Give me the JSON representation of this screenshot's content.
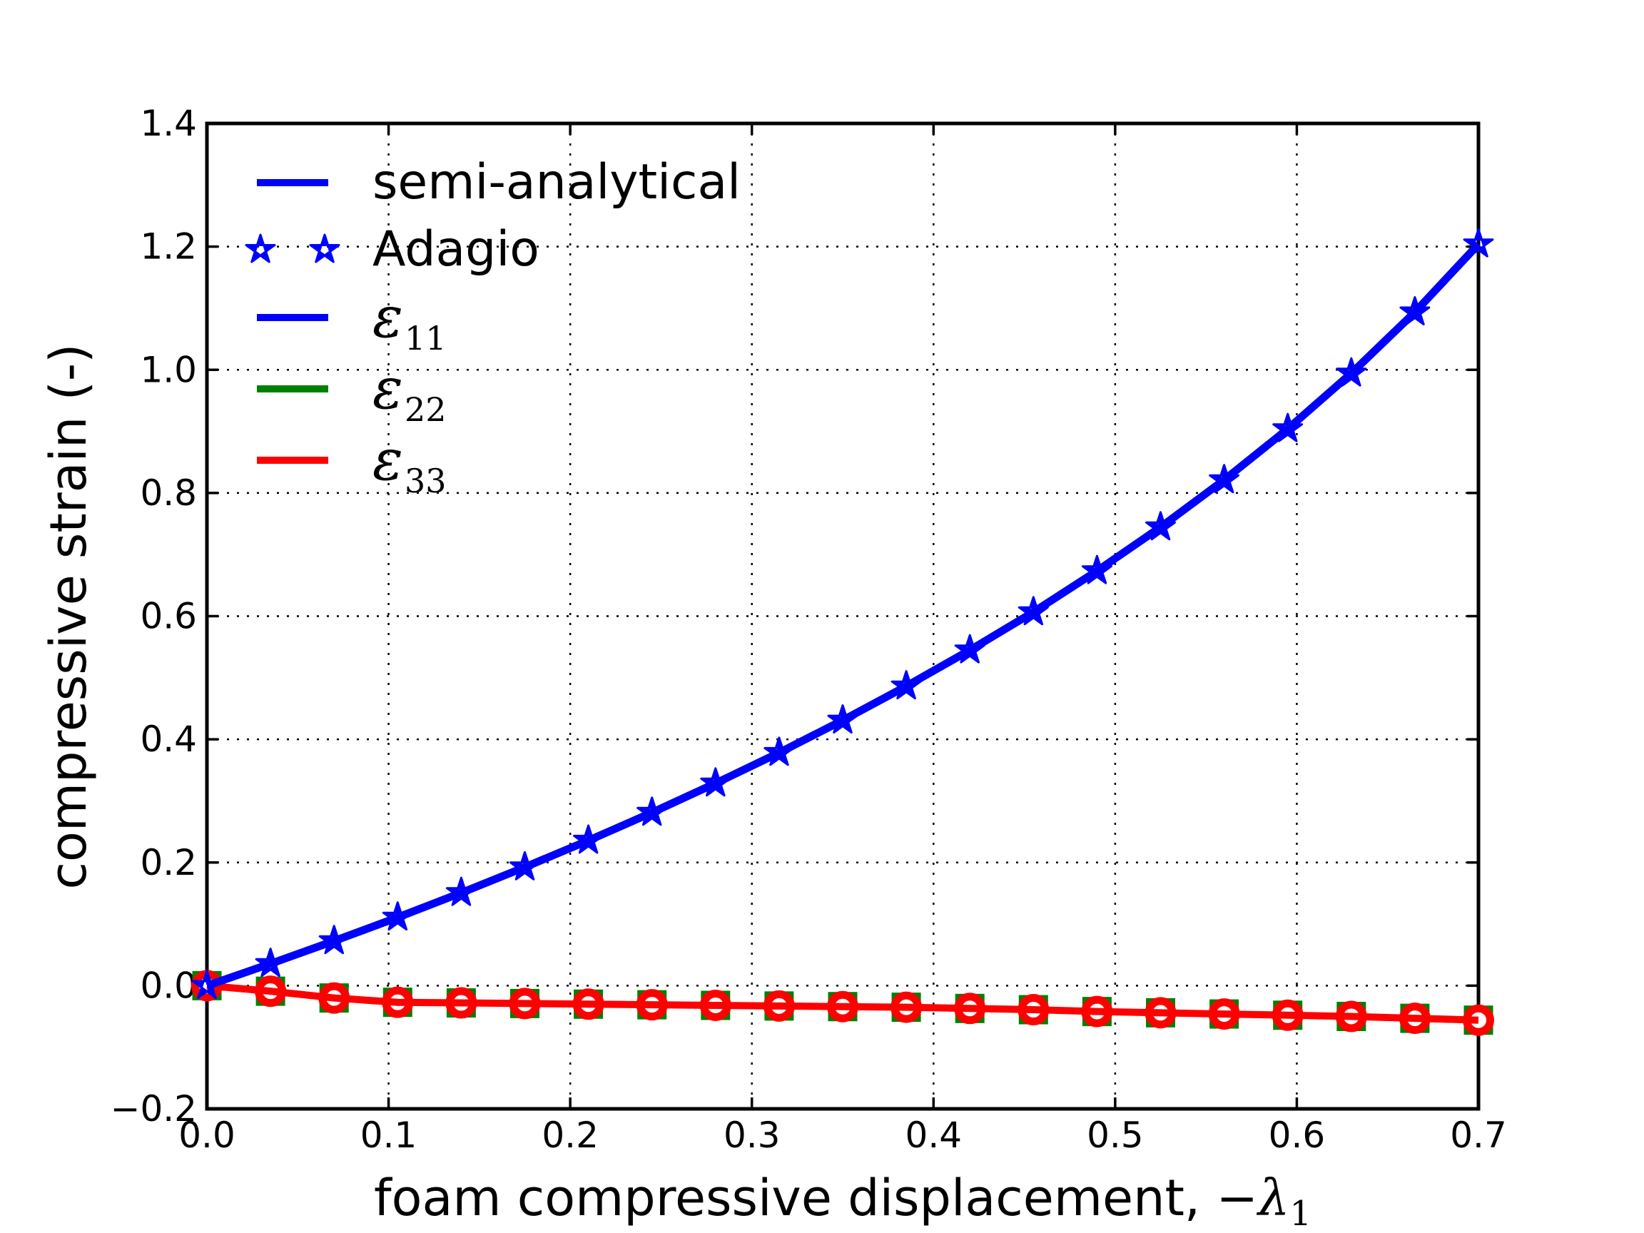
{
  "figure": {
    "background": "#ffffff"
  },
  "colors": {
    "blue": "#0000ff",
    "green": "#008000",
    "red": "#ff0000",
    "axis": "#000000",
    "marker_face": "#ffffff"
  },
  "axes": {
    "xlabel": {
      "prefix": "foam compressive displacement, ",
      "minus": "−",
      "symbol": "λ",
      "subscript": "1"
    },
    "ylabel": "compressive strain (-)",
    "x_ticks": {
      "values": [
        0.0,
        0.1,
        0.2,
        0.3,
        0.4,
        0.5,
        0.6,
        0.7
      ],
      "labels": [
        "0.0",
        "0.1",
        "0.2",
        "0.3",
        "0.4",
        "0.5",
        "0.6",
        "0.7"
      ]
    },
    "y_ticks": {
      "values": [
        1.4,
        1.2,
        1.0,
        0.8,
        0.6,
        0.4,
        0.2,
        0.0,
        -0.2
      ],
      "labels": [
        "1.4",
        "1.2",
        "1.0",
        "0.8",
        "0.6",
        "0.4",
        "0.2",
        "0.0",
        "−0.2"
      ]
    }
  },
  "legend": {
    "entries": [
      {
        "handle": "line",
        "color": "#0000ff",
        "label": "semi-analytical"
      },
      {
        "handle": "stars",
        "color": "#0000ff",
        "label": "Adagio"
      },
      {
        "handle": "line",
        "color": "#0000ff",
        "symbol": "ε",
        "sub": "11"
      },
      {
        "handle": "line",
        "color": "#008000",
        "symbol": "ε",
        "sub": "22"
      },
      {
        "handle": "line",
        "color": "#ff0000",
        "symbol": "ε",
        "sub": "33"
      }
    ]
  },
  "chart_data": {
    "type": "line",
    "title": "",
    "xlabel": "foam compressive displacement, −λ1",
    "ylabel": "compressive strain (-)",
    "xlim": [
      0.0,
      0.7
    ],
    "ylim": [
      -0.2,
      1.4
    ],
    "grid": "dotted",
    "legend_position": "upper left",
    "x": [
      0.0,
      0.035,
      0.07,
      0.105,
      0.14,
      0.175,
      0.21,
      0.245,
      0.28,
      0.315,
      0.35,
      0.385,
      0.42,
      0.455,
      0.49,
      0.525,
      0.56,
      0.595,
      0.63,
      0.665,
      0.7
    ],
    "series": [
      {
        "name": "semi-analytical eps11",
        "legend": "semi-analytical / ε_11",
        "color": "#0000ff",
        "style": "solid",
        "marker": "none",
        "values": [
          0.0,
          0.0356,
          0.0726,
          0.1109,
          0.1508,
          0.1924,
          0.2357,
          0.281,
          0.3285,
          0.3783,
          0.4308,
          0.4862,
          0.5447,
          0.6066,
          0.6733,
          0.7445,
          0.821,
          0.9039,
          0.9943,
          1.0936,
          1.204
        ]
      },
      {
        "name": "Adagio eps11",
        "legend": "Adagio",
        "color": "#0000ff",
        "style": "none",
        "marker": "star",
        "values": [
          0.0,
          0.0356,
          0.0726,
          0.1109,
          0.1508,
          0.1924,
          0.2357,
          0.281,
          0.3285,
          0.3783,
          0.4308,
          0.4862,
          0.5447,
          0.6066,
          0.6733,
          0.7445,
          0.821,
          0.9039,
          0.9943,
          1.0936,
          1.204
        ]
      },
      {
        "name": "Adagio eps22",
        "legend": "ε_22",
        "color": "#008000",
        "style": "solid",
        "marker": "filled-square",
        "values": [
          0.0,
          -0.009,
          -0.02,
          -0.027,
          -0.028,
          -0.029,
          -0.03,
          -0.031,
          -0.032,
          -0.033,
          -0.034,
          -0.035,
          -0.037,
          -0.039,
          -0.042,
          -0.044,
          -0.046,
          -0.048,
          -0.05,
          -0.053,
          -0.056
        ]
      },
      {
        "name": "Adagio eps33",
        "legend": "ε_33 markers",
        "color": "#ff0000",
        "style": "none",
        "marker": "open-circle",
        "values": [
          0.0,
          -0.009,
          -0.02,
          -0.027,
          -0.028,
          -0.029,
          -0.03,
          -0.031,
          -0.032,
          -0.033,
          -0.034,
          -0.035,
          -0.037,
          -0.039,
          -0.042,
          -0.044,
          -0.046,
          -0.048,
          -0.05,
          -0.053,
          -0.056
        ]
      },
      {
        "name": "semi-analytical eps33",
        "legend": "ε_33",
        "color": "#ff0000",
        "style": "solid",
        "marker": "none",
        "values": [
          0.0,
          -0.009,
          -0.02,
          -0.027,
          -0.028,
          -0.029,
          -0.03,
          -0.031,
          -0.032,
          -0.033,
          -0.034,
          -0.035,
          -0.037,
          -0.039,
          -0.042,
          -0.044,
          -0.046,
          -0.048,
          -0.05,
          -0.053,
          -0.056
        ]
      }
    ]
  }
}
